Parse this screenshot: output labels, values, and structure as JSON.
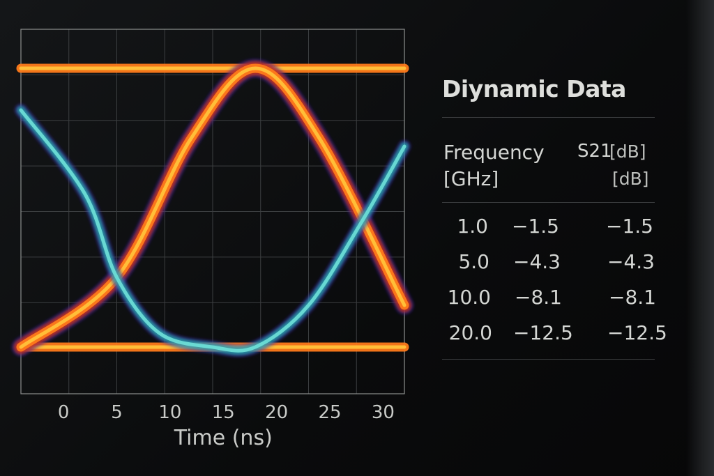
{
  "panel": {
    "title": "Diynamic Data",
    "header_frequency": "Frequency",
    "header_frequency_unit": "[GHz]",
    "header_s21": "S21",
    "header_s21_unit": "[dB]",
    "header_unit_repeat": "[dB]",
    "rows": [
      {
        "freq": "1.0",
        "s21": "−1.5",
        "db": "−1.5"
      },
      {
        "freq": "5.0",
        "s21": "−4.3",
        "db": "−4.3"
      },
      {
        "freq": "10.0",
        "s21": "−8.1",
        "db": "−8.1"
      },
      {
        "freq": "20.0",
        "s21": "−12.5",
        "db": "−12.5"
      }
    ]
  },
  "chart_data": {
    "type": "line",
    "title": "",
    "xlabel": "Time (ns)",
    "ylabel": "",
    "xlim": [
      -4,
      32
    ],
    "x_ticks": [
      "0",
      "5",
      "10",
      "15",
      "20",
      "25",
      "30"
    ],
    "x_tick_values": [
      0,
      5,
      10,
      15,
      20,
      25,
      30
    ],
    "grid": true,
    "series": [
      {
        "color": "#ff7a1a",
        "x": [
          -4,
          32
        ],
        "y": [
          1,
          1
        ]
      },
      {
        "color": "#ff7a1a",
        "x": [
          -4,
          32
        ],
        "y": [
          0,
          0
        ]
      },
      {
        "color": "#ff7a1a",
        "x": [
          -4,
          5,
          12,
          18,
          24,
          32
        ],
        "y": [
          0,
          0.25,
          0.75,
          1,
          0.75,
          0.15
        ]
      },
      {
        "color": "#2ab0b4",
        "x": [
          -4,
          2,
          5,
          9,
          14,
          18,
          23,
          28,
          32
        ],
        "y": [
          0.85,
          0.55,
          0.25,
          0.05,
          0,
          0,
          0.15,
          0.45,
          0.72
        ]
      }
    ]
  },
  "colors": {
    "trace_hot": "#ff7a1a",
    "trace_core": "#ffc23a",
    "trace_cold": "#2ab0b4",
    "halo": "#3b2aa8"
  }
}
